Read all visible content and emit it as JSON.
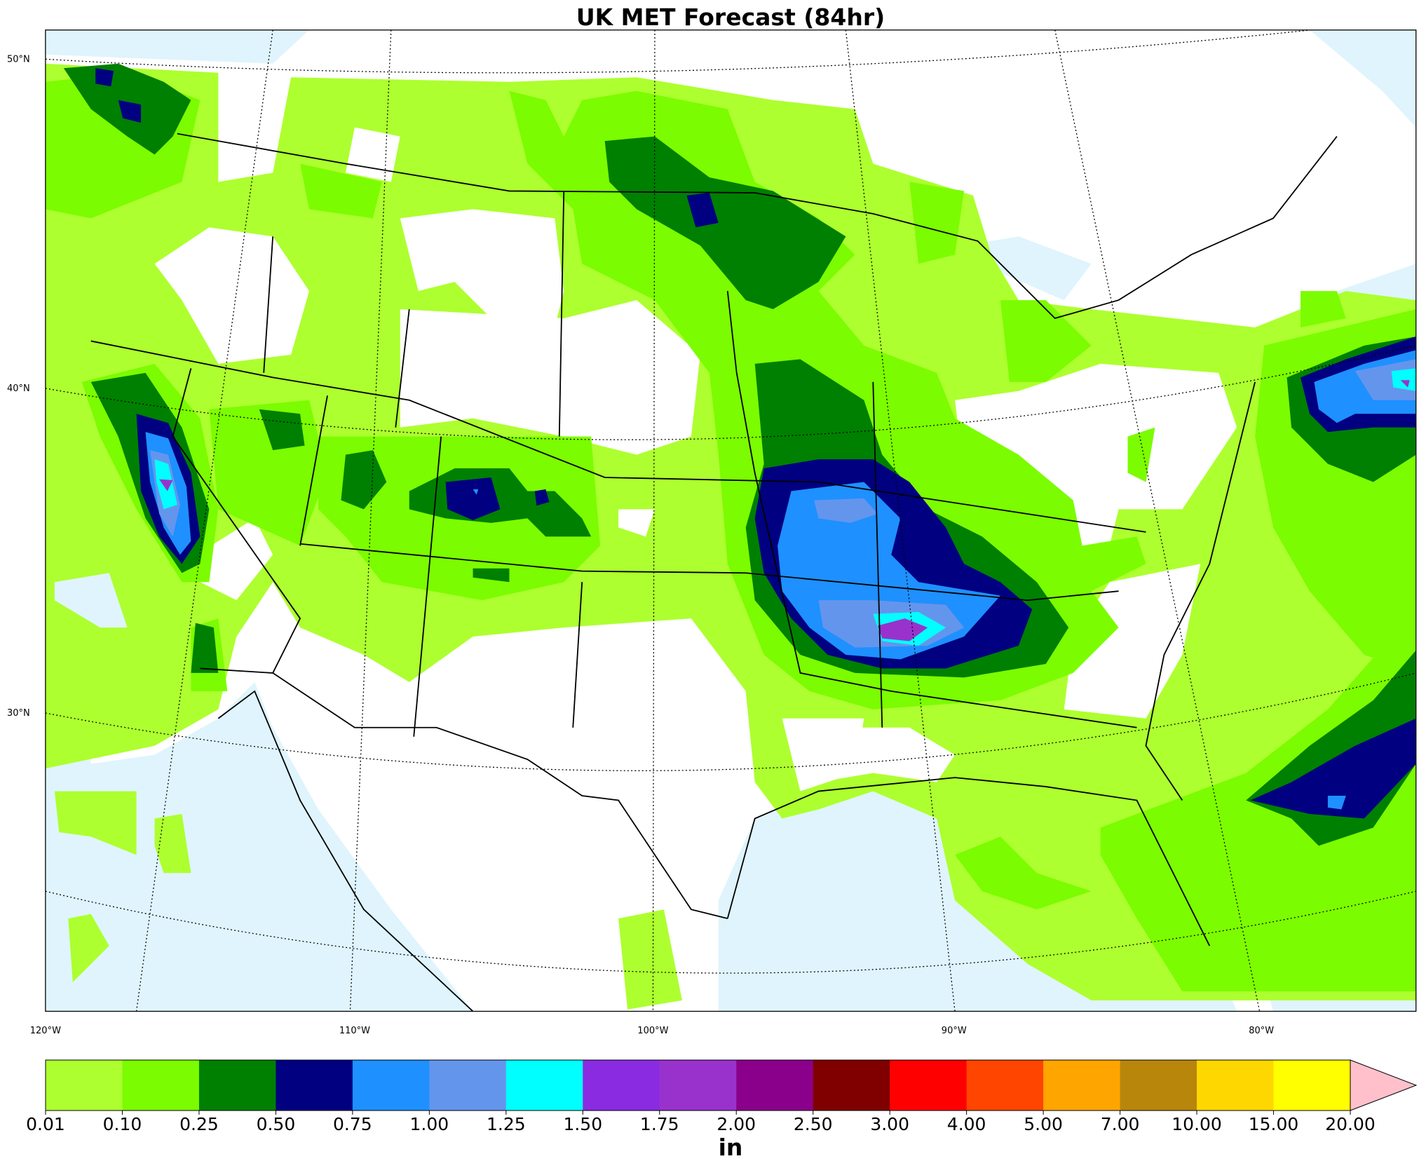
{
  "title": "UK MET Forecast (84hr)",
  "lat_labels": [
    "50°N",
    "40°N",
    "30°N"
  ],
  "lon_labels": [
    "120°W",
    "110°W",
    "100°W",
    "90°W",
    "80°W"
  ],
  "colorbar": {
    "levels": [
      "0.01",
      "0.10",
      "0.25",
      "0.50",
      "0.75",
      "1.00",
      "1.25",
      "1.50",
      "1.75",
      "2.00",
      "2.50",
      "3.00",
      "4.00",
      "5.00",
      "7.00",
      "10.00",
      "15.00",
      "20.00"
    ],
    "colors": [
      "#adff2f",
      "#7cfc00",
      "#008000",
      "#000080",
      "#1e90ff",
      "#6495ed",
      "#00ffff",
      "#8a2be2",
      "#9932cc",
      "#8b008b",
      "#800000",
      "#ff0000",
      "#ff4500",
      "#ffa500",
      "#b8860b",
      "#ffd700",
      "#ffff00"
    ],
    "extend_color": "#ffc0cb",
    "unit": "in"
  }
}
